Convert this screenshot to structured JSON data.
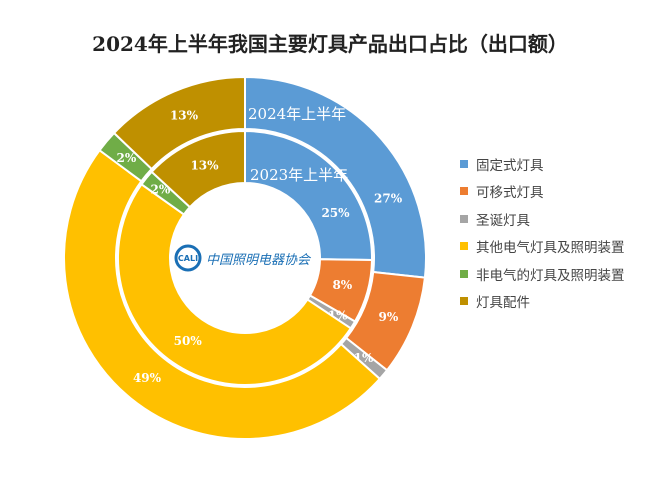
{
  "chart_data": {
    "type": "pie",
    "variant": "double-donut",
    "title": "2024年上半年我国主要灯具产品出口占比（出口额）",
    "categories": [
      "固定式灯具",
      "可移式灯具",
      "圣诞灯具",
      "其他电气灯具及照明装置",
      "非电气的灯具及照明装置",
      "灯具配件"
    ],
    "colors": [
      "#5B9BD5",
      "#ED7D31",
      "#A5A5A5",
      "#FFC000",
      "#70AD47",
      "#BF9000"
    ],
    "series": [
      {
        "name": "2024年上半年",
        "ring": "outer",
        "values": [
          27,
          9,
          1,
          49,
          2,
          13
        ]
      },
      {
        "name": "2023年上半年",
        "ring": "inner",
        "values": [
          25,
          8,
          1,
          50,
          2,
          13
        ]
      }
    ],
    "unit": "%",
    "legend_position": "right"
  },
  "logo": {
    "text": "中国照明电器协会",
    "mark": "CALI"
  }
}
